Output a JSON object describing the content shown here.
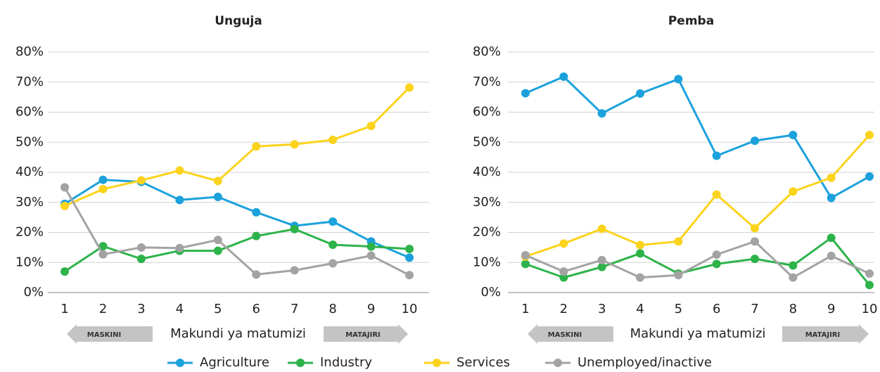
{
  "legend": [
    {
      "name": "Agriculture",
      "color": "#1ba1dc"
    },
    {
      "name": "Industry",
      "color": "#2db34a"
    },
    {
      "name": "Services",
      "color": "#fcd31c"
    },
    {
      "name": "Unemployed/inactive",
      "color": "#a3a3a3"
    }
  ],
  "chart_data": [
    {
      "type": "line",
      "title": "Unguja",
      "x_label": "Makundi ya matumizi",
      "left_arrow": "MASKINI",
      "right_arrow": "MATAJIRI",
      "categories": [
        "1",
        "2",
        "3",
        "4",
        "5",
        "6",
        "7",
        "8",
        "9",
        "10"
      ],
      "ylim": [
        0,
        80
      ],
      "yticks": [
        {
          "value": 0,
          "label": "0%"
        },
        {
          "value": 10,
          "label": "10%"
        },
        {
          "value": 20,
          "label": "20%"
        },
        {
          "value": 30,
          "label": "30%"
        },
        {
          "value": 40,
          "label": "40%"
        },
        {
          "value": 50,
          "label": "50%"
        },
        {
          "value": 60,
          "label": "60%"
        },
        {
          "value": 70,
          "label": "70%"
        },
        {
          "value": 80,
          "label": "80%"
        }
      ],
      "grid": true,
      "series": [
        {
          "values": [
            29.5,
            37.5,
            36.8,
            30.8,
            31.8,
            26.7,
            22.2,
            23.6,
            17,
            11.6
          ]
        },
        {
          "values": [
            7,
            15.4,
            11.2,
            13.9,
            13.9,
            18.8,
            21.1,
            15.9,
            15.3,
            14.5
          ]
        },
        {
          "values": [
            28.8,
            34.4,
            37.3,
            40.6,
            37.1,
            48.6,
            49.3,
            50.8,
            55.4,
            68.2
          ]
        },
        {
          "values": [
            35,
            12.7,
            15,
            14.8,
            17.5,
            6,
            7.4,
            9.7,
            12.3,
            5.8
          ]
        }
      ]
    },
    {
      "type": "line",
      "title": "Pemba",
      "x_label": "Makundi ya matumizi",
      "left_arrow": "MASKINI",
      "right_arrow": "MATAJIRI",
      "categories": [
        "1",
        "2",
        "3",
        "4",
        "5",
        "6",
        "7",
        "8",
        "9",
        "10"
      ],
      "ylim": [
        0,
        80
      ],
      "yticks": [
        {
          "value": 0,
          "label": "0%"
        },
        {
          "value": 10,
          "label": "10%"
        },
        {
          "value": 20,
          "label": "20%"
        },
        {
          "value": 30,
          "label": "30%"
        },
        {
          "value": 40,
          "label": "40%"
        },
        {
          "value": 50,
          "label": "50%"
        },
        {
          "value": 60,
          "label": "60%"
        },
        {
          "value": 70,
          "label": "70%"
        },
        {
          "value": 80,
          "label": "80%"
        }
      ],
      "grid": true,
      "series": [
        {
          "values": [
            66.3,
            71.8,
            59.6,
            66.2,
            71,
            45.5,
            50.5,
            52.4,
            31.5,
            38.6
          ]
        },
        {
          "values": [
            9.5,
            5,
            8.5,
            13,
            6.3,
            9.5,
            11.2,
            9,
            18.2,
            2.5
          ]
        },
        {
          "values": [
            12,
            16.3,
            21.2,
            15.8,
            17,
            32.6,
            21.4,
            33.6,
            38.2,
            52.4
          ]
        },
        {
          "values": [
            12.4,
            7,
            10.8,
            5,
            5.8,
            12.6,
            17,
            5,
            12.2,
            6.3
          ]
        }
      ]
    }
  ]
}
